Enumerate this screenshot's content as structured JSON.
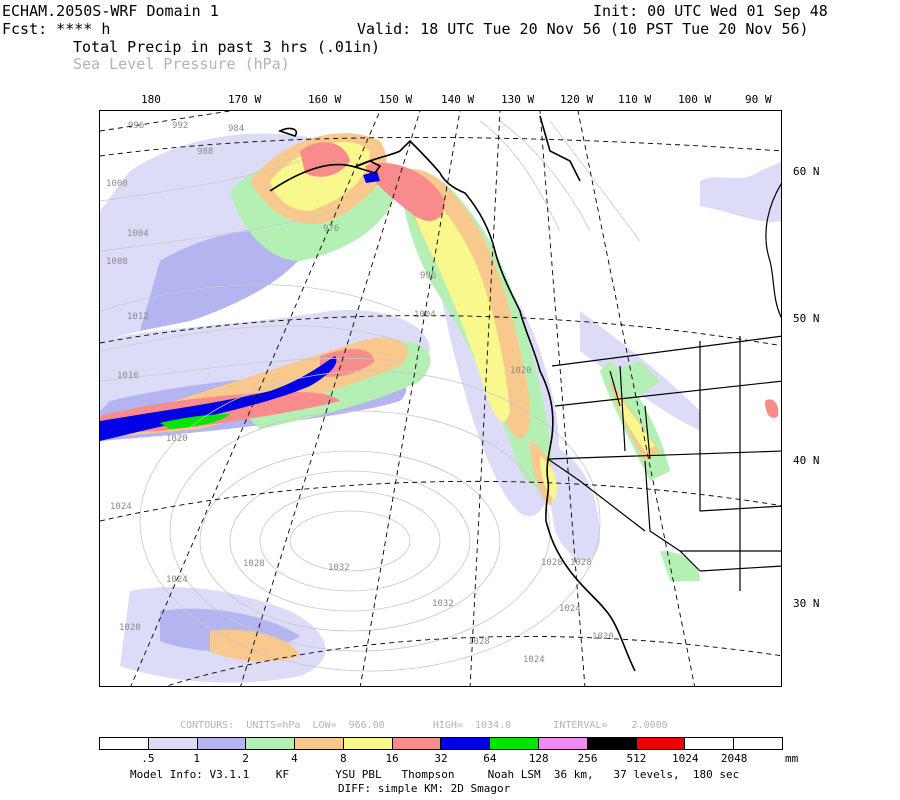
{
  "header": {
    "model": "ECHAM.2050S-WRF Domain 1",
    "fcst": "Fcst: **** h",
    "field1": "Total Precip in past 3 hrs (.01in)",
    "field2": "Sea Level Pressure (hPa)",
    "init": "Init: 00 UTC Wed 01 Sep 48",
    "valid": "Valid: 18 UTC Tue 20 Nov 56 (10 PST Tue 20 Nov 56)"
  },
  "longitude_labels": [
    "180",
    "170 W",
    "160 W",
    "150 W",
    "140 W",
    "130 W",
    "120 W",
    "110 W",
    "100 W",
    "90 W"
  ],
  "latitude_labels": [
    "60 N",
    "50 N",
    "40 N",
    "30 N"
  ],
  "isobar_labels": [
    "996",
    "992",
    "984",
    "988",
    "1000",
    "1004",
    "1008",
    "1012",
    "1016",
    "1020",
    "1024",
    "1024",
    "1028",
    "1032",
    "1032",
    "1028",
    "1024",
    "1024",
    "1020",
    "1028",
    "976",
    "996",
    "1004",
    "1020",
    "1024",
    "1028"
  ],
  "contour_info": "CONTOURS:  UNITS=hPa  LOW=  966.00        HIGH=  1034.0       INTERVAL=    2.0000",
  "legend": {
    "colors": [
      "#ffffff",
      "#dcdcf8",
      "#b4b4f0",
      "#b4f0b4",
      "#f8c88c",
      "#f8f88c",
      "#f88c8c",
      "#0000e6",
      "#00e600",
      "#f08cf0",
      "#000000",
      "#f00000",
      "#ffffff",
      "#ffffff"
    ],
    "ticks": [
      ".5",
      "1",
      "2",
      "4",
      "8",
      "16",
      "32",
      "64",
      "128",
      "256",
      "512",
      "1024",
      "2048"
    ],
    "unit": "mm"
  },
  "footer": {
    "line1": "Model Info: V3.1.1    KF       YSU PBL   Thompson     Noah LSM  36 km,   37 levels,  180 sec",
    "line2": "DIFF: simple KM: 2D Smagor"
  }
}
